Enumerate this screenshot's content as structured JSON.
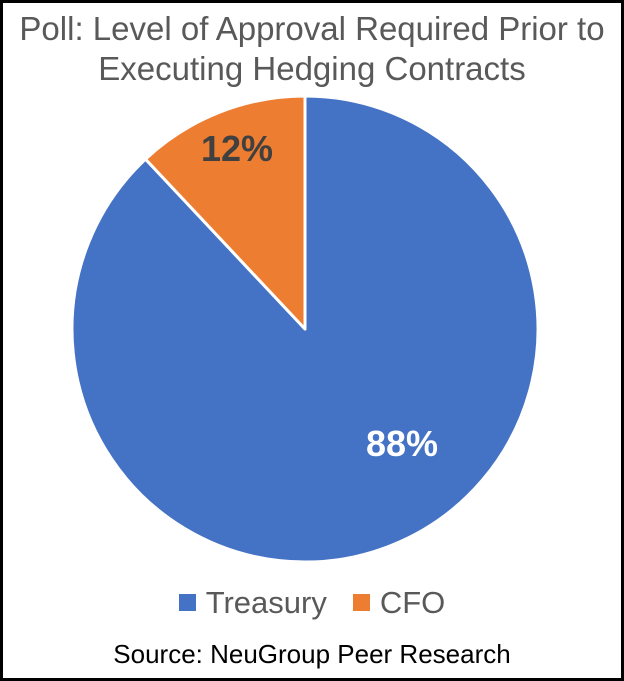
{
  "chart_data": {
    "type": "pie",
    "title": "Poll: Level of Approval Required Prior to Executing Hedging Contracts",
    "start_angle_deg": 0,
    "direction": "clockwise",
    "legend_position": "bottom",
    "slices": [
      {
        "label": "Treasury",
        "value": 88,
        "pct_label": "88%",
        "color": "#4472C4",
        "label_color": "#FFFFFF"
      },
      {
        "label": "CFO",
        "value": 12,
        "pct_label": "12%",
        "color": "#ED7D31",
        "label_color": "#404040"
      }
    ]
  },
  "source": {
    "text": "Source: NeuGroup Peer Research"
  },
  "colors": {
    "background": "#FFFFFF",
    "border": "#000000",
    "title_text": "#595959",
    "legend_text": "#595959",
    "slice_separator": "#FFFFFF"
  }
}
